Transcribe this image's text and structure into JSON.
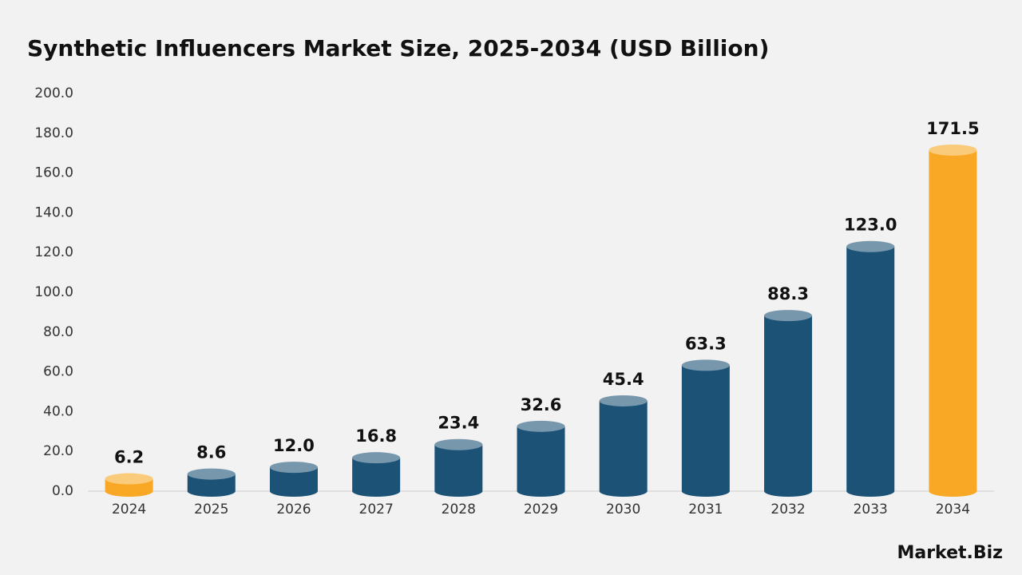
{
  "chart_data": {
    "type": "bar",
    "title": "Synthetic Influencers Market Size, 2025-2034 (USD Billion)",
    "categories": [
      "2024",
      "2025",
      "2026",
      "2027",
      "2028",
      "2029",
      "2030",
      "2031",
      "2032",
      "2033",
      "2034"
    ],
    "values": [
      6.2,
      8.6,
      12.0,
      16.8,
      23.4,
      32.6,
      45.4,
      63.3,
      88.3,
      123.0,
      171.5
    ],
    "value_labels": [
      "6.2",
      "8.6",
      "12.0",
      "16.8",
      "23.4",
      "32.6",
      "45.4",
      "63.3",
      "88.3",
      "123.0",
      "171.5"
    ],
    "colors": [
      "#f9a825",
      "#1c5276",
      "#1c5276",
      "#1c5276",
      "#1c5276",
      "#1c5276",
      "#1c5276",
      "#1c5276",
      "#1c5276",
      "#1c5276",
      "#f9a825"
    ],
    "ylim": [
      0,
      200
    ],
    "yticks": [
      {
        "value": 0,
        "label": "0.0"
      },
      {
        "value": 20,
        "label": "20.0"
      },
      {
        "value": 40,
        "label": "40.0"
      },
      {
        "value": 60,
        "label": "60.0"
      },
      {
        "value": 80,
        "label": "80.0"
      },
      {
        "value": 100,
        "label": "100.0"
      },
      {
        "value": 120,
        "label": "120.0"
      },
      {
        "value": 140,
        "label": "140.0"
      },
      {
        "value": 160,
        "label": "160.0"
      },
      {
        "value": 180,
        "label": "180.0"
      },
      {
        "value": 200,
        "label": "200.0"
      }
    ],
    "grid": false,
    "source": "Market.Biz"
  }
}
